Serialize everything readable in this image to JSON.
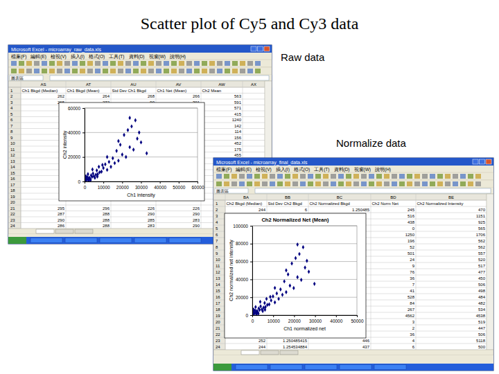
{
  "slide": {
    "title": "Scatter plot of Cy5 and Cy3 data",
    "labels": [
      "Raw data",
      "Normalize data"
    ]
  },
  "windows": [
    {
      "title": "Microsoft Excel - microarray_raw_data.xls",
      "menu": [
        "檔案(F)",
        "編輯(E)",
        "檢視(V)",
        "插入(I)",
        "格式(O)",
        "工具(T)",
        "資料(D)",
        "視窗(W)",
        "說明(H)"
      ],
      "name_box": "圖表區",
      "columns": [
        "AS",
        "AT",
        "AU",
        "AV",
        "AW",
        "AX"
      ],
      "header_row": 1,
      "header": [
        "Ch1 Bkgd (Median)",
        "Ch1 Bkgd (Mean)",
        "Std Dev Ch1 Bkgd",
        "Ch1 Net (Mean)",
        "Ch2 Mean"
      ],
      "rows": [
        {
          "row": 2,
          "cells": [
            262,
            264,
            268,
            266,
            563
          ]
        },
        {
          "row": 3,
          "cells": [
            265,
            272,
            90,
            301,
            591
          ]
        },
        {
          "row": 4,
          "cells": [
            null,
            null,
            null,
            null,
            571
          ]
        },
        {
          "row": 5,
          "cells": [
            null,
            null,
            null,
            null,
            415
          ]
        },
        {
          "row": 6,
          "cells": [
            null,
            null,
            null,
            null,
            1240
          ]
        },
        {
          "row": 7,
          "cells": [
            null,
            null,
            null,
            null,
            142
          ]
        },
        {
          "row": 8,
          "cells": [
            null,
            null,
            null,
            null,
            114
          ]
        },
        {
          "row": 9,
          "cells": [
            null,
            null,
            null,
            null,
            156
          ]
        },
        {
          "row": 10,
          "cells": [
            null,
            null,
            null,
            null,
            452
          ]
        },
        {
          "row": 11,
          "cells": [
            null,
            null,
            null,
            null,
            175
          ]
        },
        {
          "row": 12,
          "cells": [
            null,
            null,
            null,
            null,
            455
          ]
        },
        {
          "row": 13,
          "cells": [
            null,
            null,
            null,
            null,
            null
          ]
        },
        {
          "row": 14,
          "cells": [
            null,
            null,
            null,
            null,
            null
          ]
        },
        {
          "row": 15,
          "cells": [
            null,
            null,
            null,
            null,
            null
          ]
        },
        {
          "row": 16,
          "cells": [
            null,
            null,
            null,
            null,
            null
          ]
        },
        {
          "row": 17,
          "cells": [
            null,
            null,
            null,
            null,
            null
          ]
        },
        {
          "row": 18,
          "cells": [
            null,
            null,
            null,
            null,
            null
          ]
        },
        {
          "row": 19,
          "cells": [
            null,
            null,
            null,
            null,
            null
          ]
        },
        {
          "row": 20,
          "cells": [
            null,
            null,
            null,
            null,
            null
          ]
        },
        {
          "row": 21,
          "cells": [
            295,
            296,
            226,
            226,
            null
          ]
        },
        {
          "row": 22,
          "cells": [
            287,
            288,
            290,
            290,
            null
          ]
        },
        {
          "row": 23,
          "cells": [
            290,
            288,
            285,
            283,
            null
          ]
        },
        {
          "row": 24,
          "cells": [
            286,
            288,
            283,
            290,
            null
          ]
        }
      ]
    },
    {
      "title": "Microsoft Excel - microarray_final_data.xls",
      "menu": [
        "檔案(F)",
        "編輯(E)",
        "檢視(V)",
        "插入(I)",
        "格式(O)",
        "工具(T)",
        "資料(D)",
        "視窗(W)",
        "說明(H)"
      ],
      "name_box": "圖表區",
      "columns": [
        "BA",
        "BB",
        "BC",
        "BD",
        "BE"
      ],
      "header_row": 1,
      "header": [
        "Ch2 Bkgd (Median)",
        "Std Dev Ch2 Bkgd",
        "Ch2 Normalized Bkgd",
        "Ch2 Norm Net",
        "Ch2 Normalized Intensity"
      ],
      "rows": [
        {
          "row": 2,
          "cells": [
            244,
            6,
            1.250485,
            245,
            470
          ]
        },
        {
          "row": 3,
          "cells": [
            null,
            null,
            null,
            516,
            1151
          ]
        },
        {
          "row": 4,
          "cells": [
            null,
            null,
            null,
            438,
            925
          ]
        },
        {
          "row": 5,
          "cells": [
            null,
            null,
            null,
            0,
            565
          ]
        },
        {
          "row": 6,
          "cells": [
            null,
            null,
            null,
            1250,
            1706
          ]
        },
        {
          "row": 7,
          "cells": [
            null,
            null,
            null,
            196,
            562
          ]
        },
        {
          "row": 8,
          "cells": [
            null,
            null,
            null,
            52,
            562
          ]
        },
        {
          "row": 9,
          "cells": [
            null,
            null,
            null,
            501,
            557
          ]
        },
        {
          "row": 10,
          "cells": [
            null,
            null,
            null,
            24,
            520
          ]
        },
        {
          "row": 11,
          "cells": [
            null,
            null,
            null,
            9,
            517
          ]
        },
        {
          "row": 12,
          "cells": [
            null,
            null,
            null,
            76,
            477
          ]
        },
        {
          "row": 13,
          "cells": [
            null,
            null,
            null,
            36,
            450
          ]
        },
        {
          "row": 14,
          "cells": [
            null,
            null,
            null,
            7,
            506
          ]
        },
        {
          "row": 15,
          "cells": [
            null,
            null,
            null,
            41,
            498
          ]
        },
        {
          "row": 16,
          "cells": [
            null,
            null,
            null,
            528,
            484
          ]
        },
        {
          "row": 17,
          "cells": [
            null,
            null,
            null,
            84,
            482
          ]
        },
        {
          "row": 18,
          "cells": [
            null,
            null,
            null,
            267,
            534
          ]
        },
        {
          "row": 19,
          "cells": [
            null,
            null,
            null,
            4562,
            4538
          ]
        },
        {
          "row": 20,
          "cells": [
            null,
            null,
            null,
            3,
            519
          ]
        },
        {
          "row": 21,
          "cells": [
            null,
            null,
            null,
            2,
            447
          ]
        },
        {
          "row": 22,
          "cells": [
            null,
            null,
            null,
            36,
            506
          ]
        },
        {
          "row": 23,
          "cells": [
            252,
            1.250485415,
            446,
            4,
            5118
          ]
        },
        {
          "row": 24,
          "cells": [
            244,
            1.254534884,
            437,
            6,
            500
          ]
        }
      ]
    }
  ],
  "chart_data": [
    {
      "type": "scatter",
      "x_label": "Ch1 intensity",
      "y_label": "Ch2 intensity",
      "x": [
        500,
        1200,
        2000,
        800,
        3000,
        1500,
        2500,
        4000,
        3500,
        5000,
        6000,
        4500,
        7000,
        8000,
        6500,
        9000,
        10000,
        12000,
        11000,
        14000,
        13000,
        16000,
        15000,
        18000,
        20000,
        17000,
        22000,
        24000,
        19000,
        26000,
        21000,
        25000,
        23000,
        27000,
        24000,
        28000,
        30000,
        18000,
        12000,
        9500,
        2200,
        700,
        3200,
        5500,
        1800,
        6800,
        4200,
        7600,
        33000,
        29000
      ],
      "values": [
        800,
        1500,
        1800,
        2500,
        2200,
        3500,
        3000,
        3800,
        5000,
        4200,
        5500,
        6500,
        6000,
        7500,
        9000,
        8000,
        11000,
        9500,
        14000,
        12000,
        16000,
        15000,
        19000,
        17000,
        22000,
        25000,
        20000,
        28000,
        30000,
        26000,
        38000,
        45000,
        42000,
        50000,
        52000,
        35000,
        32000,
        33000,
        20000,
        13500,
        600,
        4200,
        1200,
        3000,
        6000,
        4000,
        9800,
        12000,
        23000,
        40000
      ],
      "color": "#000080",
      "marker": "diamond",
      "grid": true,
      "xlim": [
        0,
        60000
      ],
      "xticks": [
        0,
        10000,
        20000,
        30000,
        40000,
        50000,
        60000
      ],
      "ylim": [
        0,
        60000
      ],
      "yticks": [
        0,
        20000,
        40000,
        60000
      ]
    },
    {
      "type": "scatter",
      "title": "Ch2 Normalized Net (Mean)",
      "x_label": "Ch1 normalized net",
      "y_label": "Ch2 normalized net intensity",
      "x": [
        400,
        1000,
        1800,
        700,
        2600,
        1400,
        2300,
        3500,
        3100,
        4600,
        5400,
        4000,
        6300,
        7200,
        5900,
        8100,
        9000,
        10800,
        9900,
        12600,
        11700,
        14400,
        13500,
        16200,
        18000,
        15300,
        19800,
        21600,
        17100,
        23400,
        18900,
        22500,
        20700,
        24300,
        21600,
        25200,
        27000,
        16200,
        10800,
        8600,
        2000,
        600,
        2900,
        5000,
        1600,
        6100,
        3800,
        6800,
        29700,
        26100
      ],
      "values": [
        1200,
        2000,
        2600,
        3800,
        3300,
        5200,
        4600,
        5800,
        7500,
        6400,
        8400,
        9800,
        9200,
        11500,
        13600,
        12100,
        16500,
        14300,
        21000,
        18200,
        24300,
        22800,
        28800,
        25700,
        33000,
        37800,
        30300,
        42500,
        45600,
        39500,
        57800,
        68400,
        63800,
        76000,
        79000,
        53200,
        48600,
        50100,
        30400,
        20500,
        900,
        6400,
        1800,
        4600,
        9100,
        6100,
        14900,
        18200,
        35000,
        60800
      ],
      "color": "#000080",
      "marker": "diamond",
      "grid": true,
      "xlim": [
        0,
        50000
      ],
      "xticks": [
        0,
        10000,
        20000,
        30000,
        40000,
        50000
      ],
      "ylim": [
        0,
        100000
      ],
      "yticks": [
        0,
        20000,
        40000,
        60000,
        80000,
        100000
      ]
    }
  ]
}
